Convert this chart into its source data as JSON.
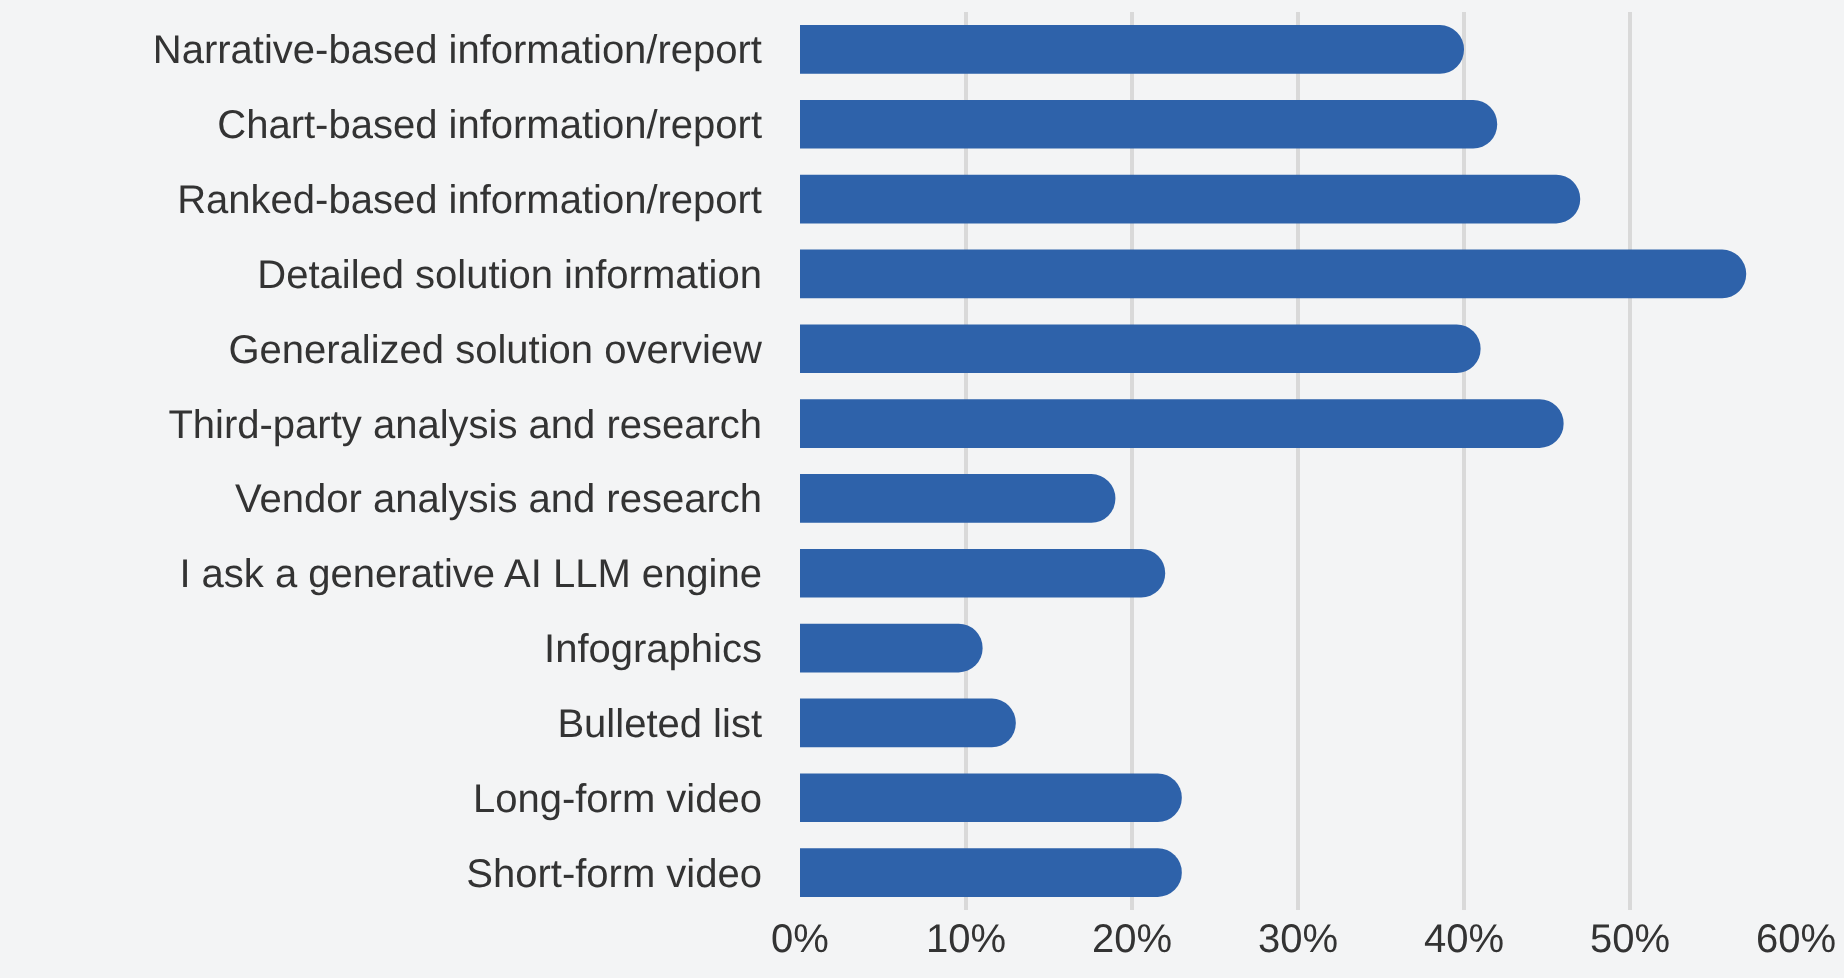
{
  "chart_data": {
    "type": "bar",
    "orientation": "horizontal",
    "categories": [
      "Narrative-based information/report",
      "Chart-based information/report",
      "Ranked-based information/report",
      "Detailed solution information",
      "Generalized solution overview",
      "Third-party analysis and research",
      "Vendor analysis and research",
      "I ask a generative AI LLM engine",
      "Infographics",
      "Bulleted list",
      "Long-form video",
      "Short-form video"
    ],
    "values": [
      40,
      42,
      47,
      57,
      41,
      46,
      19,
      22,
      11,
      13,
      23,
      23
    ],
    "color": "#2e62aa",
    "xlim": [
      0,
      60
    ],
    "xticks": [
      {
        "value": 0,
        "label": "0%"
      },
      {
        "value": 10,
        "label": "10%"
      },
      {
        "value": 20,
        "label": "20%"
      },
      {
        "value": 30,
        "label": "30%"
      },
      {
        "value": 40,
        "label": "40%"
      },
      {
        "value": 50,
        "label": "50%"
      },
      {
        "value": 60,
        "label": "60%"
      }
    ],
    "grid": "x"
  }
}
